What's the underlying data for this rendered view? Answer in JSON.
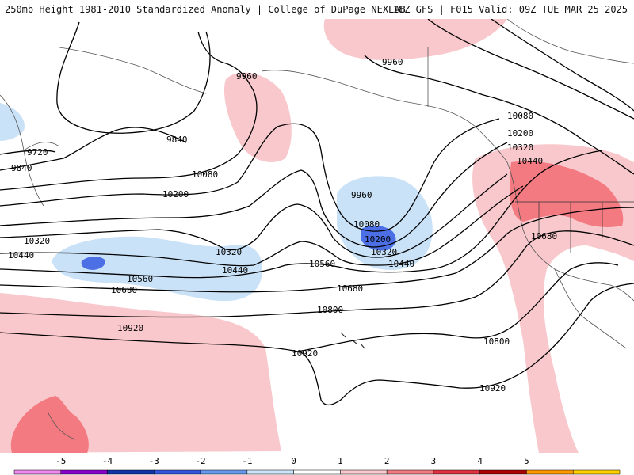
{
  "header": {
    "title": "250mb Height 1981-2010 Standardized Anomaly | College of DuPage NEXLAB",
    "run_info": "18Z GFS | F015 Valid: 09Z TUE MAR 25 2025"
  },
  "contour_labels": [
    "9720",
    "9840",
    "9840",
    "9960",
    "9960",
    "9960",
    "10080",
    "10080",
    "10080",
    "10200",
    "10200",
    "10200",
    "10320",
    "10320",
    "10320",
    "10320",
    "10440",
    "10440",
    "10440",
    "10440",
    "10560",
    "10560",
    "10680",
    "10680",
    "10680",
    "10800",
    "10800",
    "10920",
    "10920",
    "10920"
  ],
  "colorbar": {
    "ticks": [
      "-5",
      "-4",
      "-3",
      "-2",
      "-1",
      "0",
      "1",
      "2",
      "3",
      "4",
      "5"
    ],
    "colors": [
      "#ee88ee",
      "#8800cc",
      "#1133aa",
      "#3355dd",
      "#6699ee",
      "#cce4f8",
      "#ffffff",
      "#f8c8cc",
      "#f27a80",
      "#e03040",
      "#aa0000",
      "#ff9900",
      "#ffd000"
    ]
  },
  "anomaly_colors": {
    "light_blue": "#c9e2f8",
    "medium_blue": "#4d6fe6",
    "light_red": "#f8c8cc",
    "medium_red": "#f27a80"
  }
}
